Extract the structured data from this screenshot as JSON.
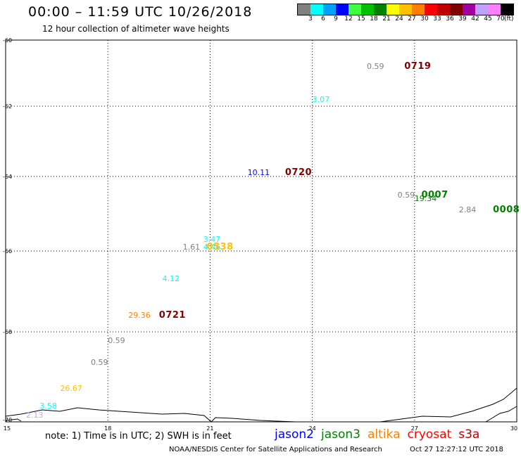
{
  "header": {
    "title": "00:00 – 11:59 UTC 10/26/2018",
    "subtitle": "12 hour collection of altimeter wave heights"
  },
  "color_scale": {
    "unit": "(ft)",
    "bins": [
      {
        "label": "3",
        "color": "#808080"
      },
      {
        "label": "6",
        "color": "#00ffff"
      },
      {
        "label": "9",
        "color": "#00a0ff"
      },
      {
        "label": "12",
        "color": "#0000ff"
      },
      {
        "label": "15",
        "color": "#40ff40"
      },
      {
        "label": "18",
        "color": "#00c000"
      },
      {
        "label": "21",
        "color": "#008000"
      },
      {
        "label": "24",
        "color": "#ffff00"
      },
      {
        "label": "27",
        "color": "#ffc000"
      },
      {
        "label": "30",
        "color": "#ff8000"
      },
      {
        "label": "33",
        "color": "#ff0000"
      },
      {
        "label": "36",
        "color": "#c00000"
      },
      {
        "label": "39",
        "color": "#800000"
      },
      {
        "label": "42",
        "color": "#a000a0"
      },
      {
        "label": "45",
        "color": "#c0a0ff"
      },
      {
        "label": "70",
        "color": "#ff80ff"
      },
      {
        "label": "",
        "color": "#000000"
      }
    ]
  },
  "map": {
    "lon_range": [
      15,
      30
    ],
    "lat_range": [
      -70,
      -60
    ],
    "x_ticks": [
      "15",
      "18",
      "21",
      "24",
      "27",
      "30"
    ],
    "y_ticks": [
      "-60",
      "-62",
      "-64",
      "-66",
      "-68",
      "-70"
    ]
  },
  "observations": [
    {
      "lon": 25.6,
      "lat": -60.8,
      "text": "0.59",
      "color": "#808080"
    },
    {
      "lon": 24.0,
      "lat": -61.8,
      "text": "3.07",
      "color": "#00ffff"
    },
    {
      "lon": 22.1,
      "lat": -63.9,
      "text": "10.11",
      "color": "#0000ff"
    },
    {
      "lon": 26.5,
      "lat": -64.5,
      "text": "0.59",
      "color": "#808080"
    },
    {
      "lon": 27.0,
      "lat": -64.6,
      "text": "19.34",
      "color": "#008000"
    },
    {
      "lon": 28.3,
      "lat": -64.9,
      "text": "2.84",
      "color": "#808080"
    },
    {
      "lon": 20.8,
      "lat": -65.7,
      "text": "3.47",
      "color": "#00ffff"
    },
    {
      "lon": 20.8,
      "lat": -65.9,
      "text": "4.46",
      "color": "#00ffff"
    },
    {
      "lon": 20.2,
      "lat": -65.9,
      "text": "1.61",
      "color": "#808080"
    },
    {
      "lon": 19.6,
      "lat": -66.7,
      "text": "4.12",
      "color": "#00ffff"
    },
    {
      "lon": 18.6,
      "lat": -67.6,
      "text": "29.36",
      "color": "#ff8000"
    },
    {
      "lon": 18.0,
      "lat": -68.2,
      "text": "0.59",
      "color": "#808080"
    },
    {
      "lon": 17.5,
      "lat": -68.7,
      "text": "0.59",
      "color": "#808080"
    },
    {
      "lon": 16.6,
      "lat": -69.3,
      "text": "26.67",
      "color": "#ffc000"
    },
    {
      "lon": 16.0,
      "lat": -69.7,
      "text": "3.58",
      "color": "#00ffff"
    },
    {
      "lon": 15.6,
      "lat": -69.9,
      "text": "2.13",
      "color": "#c0a0ff"
    }
  ],
  "passes": [
    {
      "lon": 26.7,
      "lat": -60.8,
      "text": "0719",
      "color": "#800000"
    },
    {
      "lon": 23.2,
      "lat": -63.9,
      "text": "0720",
      "color": "#800000"
    },
    {
      "lon": 27.2,
      "lat": -64.5,
      "text": "0007",
      "color": "#008000"
    },
    {
      "lon": 29.3,
      "lat": -64.9,
      "text": "0008",
      "color": "#008000"
    },
    {
      "lon": 20.9,
      "lat": -65.9,
      "text": "0538",
      "color": "#ffc000"
    },
    {
      "lon": 19.5,
      "lat": -67.6,
      "text": "0721",
      "color": "#800000"
    }
  ],
  "footer": {
    "note": "note:  1) Time is in UTC;  2) SWH is in feet",
    "legend": [
      {
        "name": "jason2",
        "color": "#0000ff"
      },
      {
        "name": "jason3",
        "color": "#008000"
      },
      {
        "name": "altika",
        "color": "#ff8000"
      },
      {
        "name": "cryosat",
        "color": "#ff0000"
      },
      {
        "name": "s3a",
        "color": "#c00000"
      }
    ],
    "credit": "NOAA/NESDIS Center for Satellite Applications and Research",
    "timestamp": "Oct 27 12:27:12 UTC 2018"
  }
}
